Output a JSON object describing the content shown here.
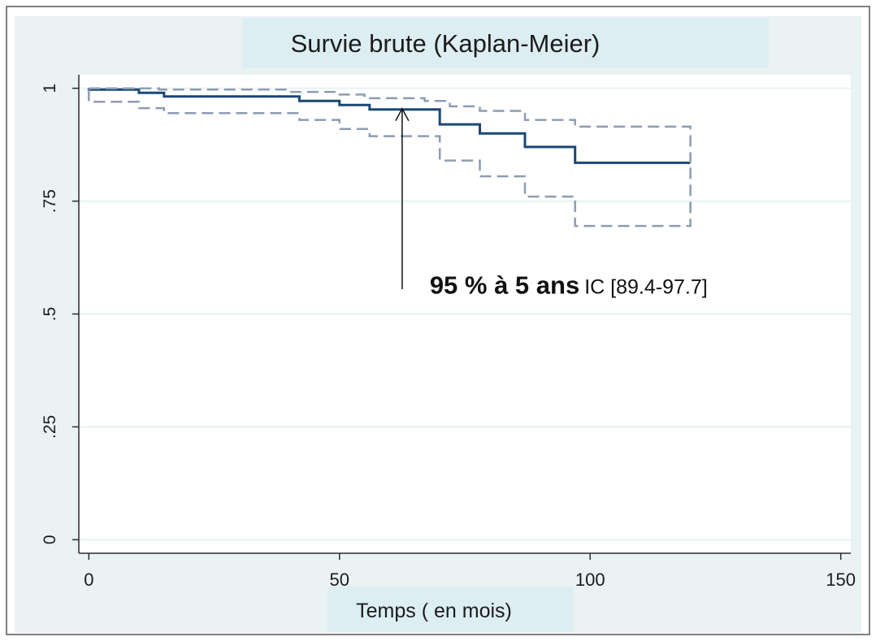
{
  "chart_data": {
    "type": "line",
    "title": "Survie brute (Kaplan-Meier)",
    "xlabel": "Temps ( en mois)",
    "ylabel": "",
    "xlim": [
      -2,
      152
    ],
    "ylim": [
      -0.03,
      1.03
    ],
    "x_ticks": [
      0,
      50,
      100,
      150
    ],
    "x_tick_labels": [
      "0",
      "50",
      "100",
      "150"
    ],
    "y_ticks": [
      0,
      0.25,
      0.5,
      0.75,
      1
    ],
    "y_tick_labels": [
      "0",
      ".25",
      ".5",
      ".75",
      "1"
    ],
    "grid": true,
    "colors": {
      "survival": "#1a4873",
      "ci": "#8c9cb2",
      "title_bg": "#ddeef2",
      "outer_bg": "#eaf2f3",
      "grid": "#e6f1f3",
      "annotation": "#111111"
    },
    "series": [
      {
        "role": "survival",
        "style": "solid",
        "x": [
          0,
          0,
          10,
          10,
          15,
          15,
          42,
          42,
          50,
          50,
          56,
          56,
          70,
          70,
          78,
          78,
          87,
          87,
          97,
          97,
          120
        ],
        "y": [
          1,
          0.997,
          0.997,
          0.99,
          0.99,
          0.982,
          0.982,
          0.972,
          0.972,
          0.963,
          0.963,
          0.953,
          0.953,
          0.92,
          0.92,
          0.9,
          0.9,
          0.87,
          0.87,
          0.835,
          0.835
        ]
      },
      {
        "role": "ci-upper",
        "style": "dashed",
        "x": [
          0,
          0,
          14,
          14,
          40,
          40,
          50,
          50,
          55,
          55,
          67,
          67,
          72,
          72,
          78,
          78,
          87,
          87,
          97,
          97,
          120,
          120
        ],
        "y": [
          1,
          1,
          1,
          0.997,
          0.997,
          0.992,
          0.992,
          0.986,
          0.986,
          0.978,
          0.978,
          0.972,
          0.972,
          0.96,
          0.96,
          0.95,
          0.95,
          0.93,
          0.93,
          0.915,
          0.915,
          0.835
        ]
      },
      {
        "role": "ci-lower",
        "style": "dashed",
        "x": [
          0,
          0,
          10,
          10,
          15,
          15,
          42,
          42,
          50,
          50,
          56,
          56,
          70,
          70,
          78,
          78,
          87,
          87,
          97,
          97,
          120,
          120
        ],
        "y": [
          0.997,
          0.97,
          0.97,
          0.956,
          0.956,
          0.945,
          0.945,
          0.93,
          0.93,
          0.91,
          0.91,
          0.894,
          0.894,
          0.84,
          0.84,
          0.805,
          0.805,
          0.76,
          0.76,
          0.695,
          0.695,
          0.835
        ]
      }
    ],
    "annotation": {
      "bold_text": "95 % à 5 ans",
      "text": "IC [89.4-97.7]",
      "arrow_x": 62.5,
      "arrow_y_from": 0.555,
      "arrow_y_to": 0.955,
      "text_x": 68,
      "text_y": 0.545
    }
  }
}
